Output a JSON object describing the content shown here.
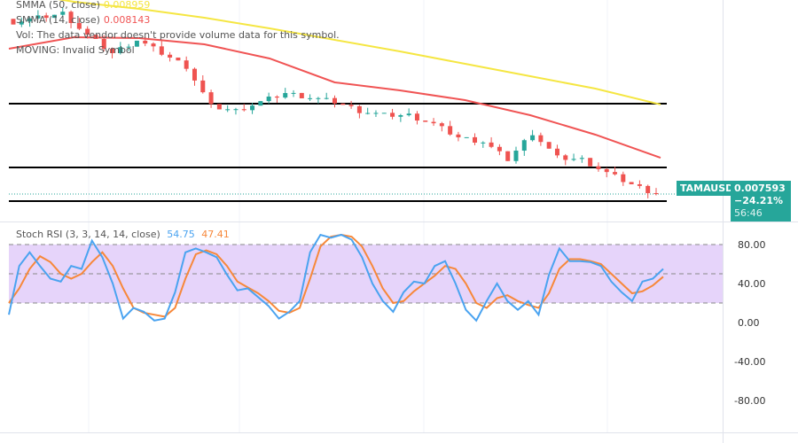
{
  "symbol": "TAMAUSD",
  "last_price": "0.007593",
  "change_pct": "−24.21%",
  "countdown": "56:46",
  "legend": {
    "smma50": {
      "label": "SMMA (50, close)",
      "value": "0.008959",
      "color": "#f5e642"
    },
    "smma14": {
      "label": "SMMA (14, close)",
      "value": "0.008143",
      "color": "#f05454"
    },
    "vol": "Vol: The data vendor doesn't provide volume data for this symbol.",
    "moving": "MOVING: Invalid Symbol"
  },
  "chart_data": [
    {
      "type": "candlestick",
      "closes": [
        0.010216,
        0.010283,
        0.010351,
        0.010013,
        0.009743,
        0.009945,
        0.009743,
        0.00954,
        0.008931,
        0.008864,
        0.008999,
        0.009134,
        0.009067,
        0.008999,
        0.008864,
        0.008796,
        0.008796,
        0.008661,
        0.008458,
        0.008391,
        0.00812,
        0.008526,
        0.008147,
        0.00812,
        0.007917,
        0.007742,
        0.007593
      ],
      "smma14": [
        0.00981,
        0.009986,
        0.009973,
        0.009878,
        0.009662,
        0.009297,
        0.009175,
        0.009026,
        0.008796,
        0.008499,
        0.008147
      ],
      "smma50": [
        0.010689,
        0.010527,
        0.010419,
        0.010283,
        0.010121,
        0.009945,
        0.00977,
        0.00958,
        0.009391,
        0.009202,
        0.008959
      ],
      "horizontal_levels": [
        0.008972,
        0.007999,
        0.007485
      ],
      "up_color": "#26a69a",
      "down_color": "#ef5350"
    },
    {
      "type": "line",
      "title": "Stoch RSI (3, 3, 14, 14, close)",
      "k_value": "54.75",
      "d_value": "47.41",
      "k_color": "#4aa3f0",
      "d_color": "#f7883a",
      "y_ticks": [
        "80.00",
        "40.00",
        "0.00",
        "-40.00",
        "-80.00"
      ],
      "band": [
        20,
        80
      ],
      "k": [
        8,
        58,
        72,
        58,
        45,
        42,
        58,
        55,
        84,
        67,
        40,
        4,
        15,
        11,
        2,
        4,
        31,
        72,
        76,
        72,
        67,
        49,
        33,
        35,
        26,
        17,
        4,
        11,
        22,
        72,
        90,
        87,
        90,
        85,
        67,
        40,
        22,
        11,
        31,
        42,
        40,
        58,
        63,
        40,
        13,
        2,
        22,
        40,
        22,
        13,
        22,
        8,
        49,
        76,
        63,
        63,
        62,
        58,
        42,
        31,
        22,
        42,
        45,
        55
      ],
      "d": [
        20,
        35,
        55,
        68,
        62,
        50,
        45,
        50,
        62,
        72,
        58,
        35,
        15,
        10,
        8,
        6,
        15,
        45,
        70,
        74,
        70,
        58,
        42,
        36,
        30,
        22,
        12,
        10,
        15,
        45,
        78,
        88,
        90,
        88,
        78,
        58,
        35,
        20,
        22,
        32,
        40,
        48,
        58,
        55,
        40,
        20,
        15,
        25,
        28,
        22,
        18,
        15,
        30,
        55,
        65,
        65,
        63,
        60,
        50,
        40,
        30,
        32,
        38,
        47
      ]
    }
  ]
}
